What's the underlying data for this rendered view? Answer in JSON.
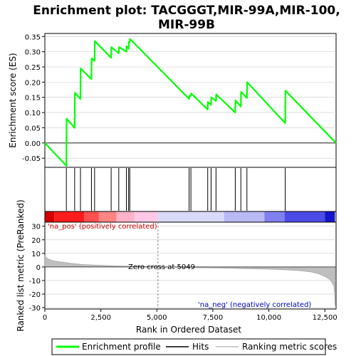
{
  "title": "Enrichment plot: TACGGGT,MIR-99A,MIR-100,MIR-99B",
  "colors": {
    "enrichment_line": "#00ff00",
    "hits": "#000000",
    "metric_fill": "#bebebe",
    "grid": "#c8c8c8",
    "zero_line": "#000000",
    "pos_label": "#cc0000",
    "neg_label": "#0000cc"
  },
  "chart_data": [
    {
      "type": "line",
      "name": "enrichment-profile",
      "ylabel": "Enrichment score (ES)",
      "ylim": [
        -0.08,
        0.36
      ],
      "xlim": [
        0,
        13000
      ],
      "y_ticks": [
        -0.05,
        0.0,
        0.05,
        0.1,
        0.15,
        0.2,
        0.25,
        0.3,
        0.35
      ],
      "y_tick_labels": [
        "-0.05",
        "0.00",
        "0.05",
        "0.10",
        "0.15",
        "0.20",
        "0.25",
        "0.30",
        "0.35"
      ],
      "grid": true,
      "series": [
        {
          "name": "Enrichment profile",
          "x": [
            0,
            960,
            970,
            1330,
            1340,
            1590,
            1600,
            2080,
            2090,
            2220,
            2230,
            2960,
            2970,
            3300,
            3310,
            3640,
            3650,
            3740,
            3750,
            3790,
            3800,
            6440,
            6450,
            6520,
            6530,
            7270,
            7280,
            7420,
            7430,
            7640,
            7650,
            8500,
            8510,
            8750,
            8760,
            9020,
            9030,
            10730,
            10740,
            13000
          ],
          "y": [
            0.0,
            -0.075,
            0.08,
            0.05,
            0.165,
            0.145,
            0.245,
            0.21,
            0.278,
            0.27,
            0.335,
            0.28,
            0.315,
            0.295,
            0.315,
            0.3,
            0.318,
            0.31,
            0.332,
            0.33,
            0.342,
            0.145,
            0.155,
            0.155,
            0.163,
            0.11,
            0.135,
            0.125,
            0.15,
            0.138,
            0.16,
            0.1,
            0.14,
            0.12,
            0.168,
            0.148,
            0.2,
            0.065,
            0.172,
            0.0
          ]
        }
      ]
    },
    {
      "type": "scatter",
      "name": "hits",
      "hit_positions": [
        960,
        1330,
        1590,
        2080,
        2220,
        2960,
        3300,
        3640,
        3740,
        3790,
        6440,
        6520,
        7270,
        7420,
        7640,
        8500,
        8750,
        9020,
        10730
      ]
    },
    {
      "type": "heatmap",
      "name": "rank-color-bar",
      "segments": [
        {
          "x0": 0,
          "x1": 420,
          "color": "#d40000"
        },
        {
          "x0": 420,
          "x1": 1750,
          "color": "#ff1c1c"
        },
        {
          "x0": 1750,
          "x1": 2400,
          "color": "#ff4f4f"
        },
        {
          "x0": 2400,
          "x1": 3200,
          "color": "#ff8585"
        },
        {
          "x0": 3200,
          "x1": 4000,
          "color": "#ffb2c8"
        },
        {
          "x0": 4000,
          "x1": 5049,
          "color": "#ffc8e6"
        },
        {
          "x0": 5049,
          "x1": 8000,
          "color": "#d9d9fa"
        },
        {
          "x0": 8000,
          "x1": 9800,
          "color": "#b9b9f5"
        },
        {
          "x0": 9800,
          "x1": 10700,
          "color": "#8080f0"
        },
        {
          "x0": 10700,
          "x1": 12500,
          "color": "#4b4be6"
        },
        {
          "x0": 12500,
          "x1": 12950,
          "color": "#1414c8"
        }
      ]
    },
    {
      "type": "area",
      "name": "ranked-list-metric",
      "xlabel": "Rank in Ordered Dataset",
      "ylabel": "Ranked list metric (PreRanked)",
      "ylim": [
        -31,
        33
      ],
      "xlim": [
        0,
        13000
      ],
      "x_ticks": [
        0,
        2500,
        5000,
        7500,
        10000,
        12500
      ],
      "x_tick_labels": [
        "0",
        "2,500",
        "5,000",
        "7,500",
        "10,000",
        "12,500"
      ],
      "y_ticks": [
        -30,
        -20,
        -10,
        0,
        10,
        20,
        30
      ],
      "y_tick_labels": [
        "-30",
        "-20",
        "-10",
        "0",
        "10",
        "20",
        "30"
      ],
      "grid": true,
      "series": [
        {
          "name": "Ranking metric scores",
          "x": [
            0,
            50,
            150,
            300,
            500,
            800,
            1200,
            1750,
            2500,
            3200,
            4000,
            5049,
            6000,
            7000,
            8000,
            9000,
            10000,
            10700,
            11400,
            11900,
            12200,
            12500,
            12700,
            12800,
            12900,
            12940,
            12960
          ],
          "y": [
            8.5,
            7.0,
            6.0,
            5.0,
            4.2,
            3.5,
            2.6,
            1.8,
            1.2,
            0.8,
            0.4,
            0.0,
            -0.3,
            -0.6,
            -0.9,
            -1.3,
            -1.7,
            -2.1,
            -2.8,
            -3.8,
            -5.0,
            -7.0,
            -9.0,
            -11.0,
            -14.0,
            -20.0,
            -29.0
          ]
        }
      ],
      "annotations": {
        "pos_label": "'na_pos' (positively correlated)",
        "neg_label": "'na_neg' (negatively correlated)",
        "zero_cross_label": "Zero cross at 5049",
        "zero_cross_x": 5049
      }
    }
  ],
  "legend": {
    "items": [
      {
        "label": "Enrichment profile",
        "color": "#00ff00",
        "style": "line"
      },
      {
        "label": "Hits",
        "color": "#000000",
        "style": "line"
      },
      {
        "label": "Ranking metric scores",
        "color": "#bebebe",
        "style": "line"
      }
    ]
  }
}
